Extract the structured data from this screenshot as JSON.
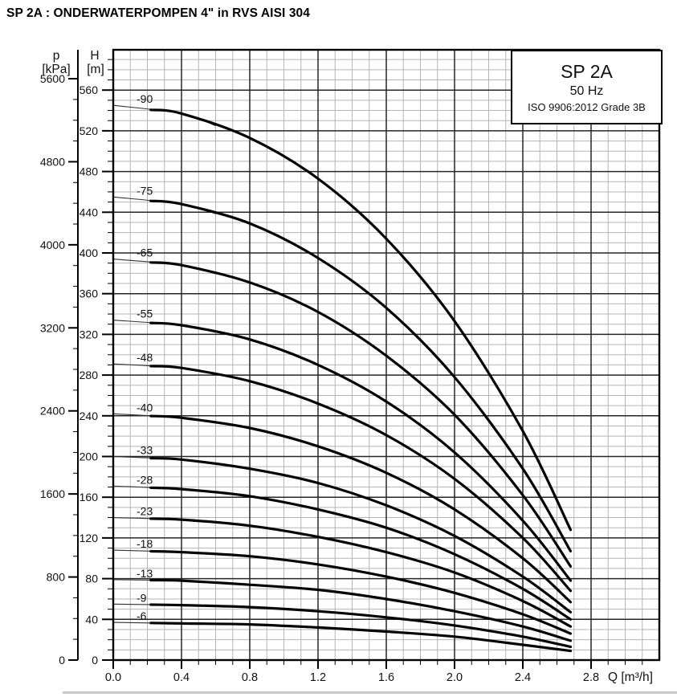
{
  "page": {
    "title": "SP 2A : ONDERWATERPOMPEN 4\" in RVS AISI 304"
  },
  "legend": {
    "model": "SP 2A",
    "frequency": "50 Hz",
    "standard": "ISO 9906:2012 Grade 3B"
  },
  "axes": {
    "pressure": {
      "name": "p",
      "unit": "[kPa]",
      "ticks": [
        0,
        800,
        1600,
        2400,
        3200,
        4000,
        4800,
        5600
      ],
      "minor_step": 200,
      "axis_max": 5800
    },
    "head": {
      "name": "H",
      "unit": "[m]",
      "ticks": [
        0,
        40,
        80,
        120,
        160,
        200,
        240,
        280,
        320,
        360,
        400,
        440,
        480,
        520,
        560
      ],
      "minor_step": 10,
      "frame_max": 600
    },
    "flow": {
      "name": "Q",
      "unit": "[m³/h]",
      "tick_labels": [
        "0.0",
        "0.4",
        "0.8",
        "1.2",
        "1.6",
        "2.0",
        "2.4",
        "2.8"
      ],
      "tick_step": 0.4,
      "minor_step": 0.1,
      "frame_max": 3.2
    }
  },
  "colors": {
    "curve": "#050505",
    "major_grid": "#262626",
    "minor_grid": "#b5b5b5",
    "frame": "#000000",
    "text": "#111111"
  },
  "chart_data": {
    "type": "line",
    "title": "SP 2A 50 Hz pump head curves",
    "xlabel": "Q [m³/h]",
    "ylabel": "H [m]",
    "y2label": "p [kPa]",
    "xlim": [
      0,
      3.2
    ],
    "ylim": [
      0,
      600
    ],
    "p_lim": [
      0,
      5800
    ],
    "grid": "on",
    "x_sample": [
      0,
      0.4,
      0.8,
      1.2,
      1.6,
      2.0,
      2.4,
      2.68
    ],
    "series": [
      {
        "label": "-90",
        "values": [
          545,
          537,
          513,
          473,
          414,
          333,
          225,
          128
        ]
      },
      {
        "label": "-75",
        "values": [
          455,
          448,
          429,
          395,
          346,
          278,
          188,
          107
        ]
      },
      {
        "label": "-65",
        "values": [
          394,
          388,
          371,
          342,
          299,
          241,
          162,
          92
        ]
      },
      {
        "label": "-55",
        "values": [
          334,
          329,
          315,
          290,
          254,
          204,
          137,
          78
        ]
      },
      {
        "label": "-48",
        "values": [
          291,
          287,
          274,
          252,
          221,
          178,
          120,
          68
        ]
      },
      {
        "label": "-40",
        "values": [
          242,
          238,
          228,
          210,
          184,
          148,
          100,
          57
        ]
      },
      {
        "label": "-33",
        "values": [
          200,
          197,
          188,
          174,
          152,
          122,
          82,
          47
        ]
      },
      {
        "label": "-28",
        "values": [
          171,
          168,
          161,
          148,
          130,
          104,
          70,
          40
        ]
      },
      {
        "label": "-23",
        "values": [
          140,
          138,
          132,
          121,
          106,
          86,
          58,
          33
        ]
      },
      {
        "label": "-18",
        "values": [
          108,
          106,
          102,
          94,
          82,
          66,
          45,
          26
        ]
      },
      {
        "label": "-13",
        "values": [
          79,
          78,
          74,
          69,
          60,
          48,
          33,
          19
        ]
      },
      {
        "label": "-9",
        "values": [
          55,
          54,
          52,
          48,
          42,
          34,
          23,
          13
        ]
      },
      {
        "label": "-6",
        "values": [
          37,
          36,
          35,
          32,
          28,
          23,
          15,
          9
        ]
      }
    ]
  }
}
